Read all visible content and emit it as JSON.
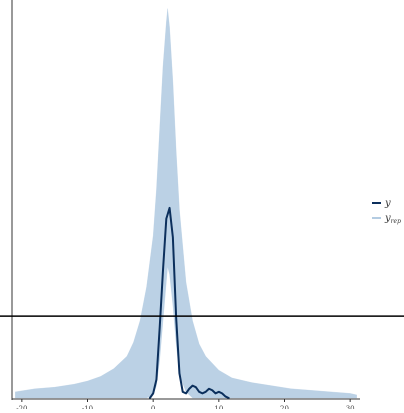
{
  "chart_data": {
    "type": "area",
    "xlim": [
      -21.5,
      31.5
    ],
    "ylim": [
      0,
      0.255
    ],
    "x_ticks": [
      -20,
      -10,
      0,
      10,
      20,
      30
    ],
    "x_tick_labels": [
      "-20",
      "-10",
      "0",
      "10",
      "20",
      "30"
    ],
    "hline_y": 0.053,
    "grid": false,
    "legend_position": "right",
    "series": [
      {
        "name": "y",
        "role": "observed density",
        "color": "#0b2f5c",
        "x": [
          -0.5,
          0,
          0.5,
          1,
          1.5,
          2,
          2.5,
          3,
          3.5,
          4,
          4.5,
          5,
          5.5,
          6,
          6.5,
          7,
          7.5,
          8,
          8.5,
          9,
          9.5,
          10,
          10.5,
          11,
          11.5
        ],
        "y": [
          0,
          0.003,
          0.012,
          0.046,
          0.083,
          0.116,
          0.123,
          0.104,
          0.052,
          0.016,
          0.004,
          0.003,
          0.006,
          0.008,
          0.007,
          0.004,
          0.003,
          0.004,
          0.006,
          0.005,
          0.003,
          0.004,
          0.003,
          0.001,
          0
        ]
      },
      {
        "name": "y_rep",
        "legend_label_main": "y",
        "legend_label_sub": "rep",
        "role": "replicated draws envelope",
        "color": "#b4cce2",
        "x": [
          -21,
          -18,
          -15,
          -12,
          -10,
          -8,
          -6,
          -4,
          -3,
          -2,
          -1,
          0,
          0.5,
          1,
          1.5,
          2,
          2.2,
          2.5,
          3,
          3.5,
          4,
          5,
          6,
          7,
          8,
          10,
          12,
          15,
          18,
          21,
          24,
          27,
          30,
          31
        ],
        "y_upper": [
          0.004,
          0.006,
          0.007,
          0.009,
          0.011,
          0.014,
          0.019,
          0.027,
          0.036,
          0.05,
          0.072,
          0.105,
          0.135,
          0.175,
          0.215,
          0.243,
          0.252,
          0.24,
          0.205,
          0.16,
          0.122,
          0.075,
          0.05,
          0.035,
          0.027,
          0.018,
          0.013,
          0.01,
          0.008,
          0.006,
          0.005,
          0.004,
          0.003,
          0.002
        ],
        "y_lower": [
          0,
          0,
          0,
          0,
          0,
          0,
          0,
          0,
          0,
          0,
          0,
          0.002,
          0.008,
          0.025,
          0.05,
          0.075,
          0.085,
          0.08,
          0.06,
          0.035,
          0.015,
          0.004,
          0,
          0,
          0,
          0,
          0,
          0,
          0,
          0,
          0,
          0,
          0,
          0
        ]
      }
    ]
  },
  "legend": {
    "items": [
      {
        "label": "y",
        "sub": "",
        "color": "#0b2f5c"
      },
      {
        "label": "y",
        "sub": "rep",
        "color": "#b4cce2"
      }
    ]
  }
}
